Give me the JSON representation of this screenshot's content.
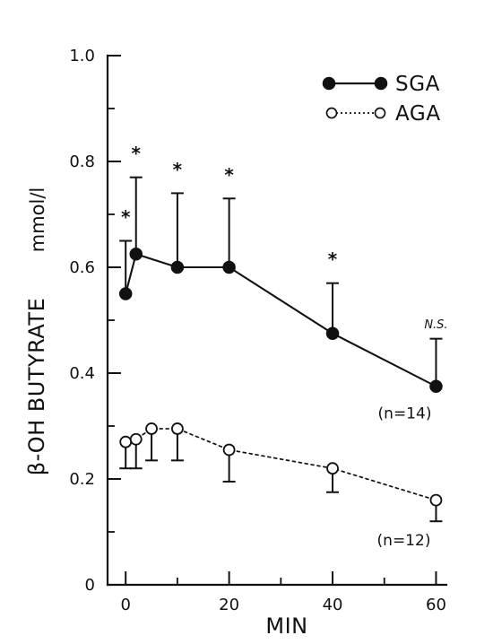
{
  "chart_data": {
    "type": "line",
    "xlabel": "MIN",
    "ylabel": "β-OH BUTYRATE",
    "ylabel_unit": "mmol/l",
    "xlim": [
      -3.5,
      62
    ],
    "ylim": [
      0,
      1.0
    ],
    "x_ticks": [
      0,
      20,
      40,
      60
    ],
    "x_minor_ticks": [
      10,
      30,
      50
    ],
    "y_ticks": [
      0,
      0.2,
      0.4,
      0.6,
      0.8,
      1.0
    ],
    "y_tick_labels": [
      "0",
      "0.2",
      "0.4",
      "0.6",
      "0.8",
      "1.0"
    ],
    "y_minor_ticks": [
      0.1,
      0.3,
      0.5,
      0.7,
      0.9
    ],
    "grid": false,
    "legend": {
      "position": "top-right",
      "entries": [
        "SGA",
        "AGA"
      ]
    },
    "series": [
      {
        "name": "SGA",
        "style": "solid",
        "marker": "filled-circle",
        "x": [
          0,
          2,
          10,
          20,
          40,
          60
        ],
        "values": [
          0.55,
          0.625,
          0.6,
          0.6,
          0.475,
          0.375
        ],
        "error_upper": [
          0.65,
          0.77,
          0.74,
          0.73,
          0.57,
          0.465
        ],
        "n_label": "(n=14)"
      },
      {
        "name": "AGA",
        "style": "dotted",
        "marker": "open-circle",
        "x": [
          0,
          2,
          5,
          10,
          20,
          40,
          60
        ],
        "values": [
          0.27,
          0.275,
          0.295,
          0.295,
          0.255,
          0.22,
          0.16
        ],
        "error_lower": [
          0.22,
          0.22,
          0.235,
          0.235,
          0.195,
          0.175,
          0.12
        ],
        "n_label": "(n=12)"
      }
    ],
    "annotations": {
      "significance_marks": [
        {
          "x": 0,
          "y": 0.695,
          "text": "*"
        },
        {
          "x": 2,
          "y": 0.815,
          "text": "*"
        },
        {
          "x": 10,
          "y": 0.785,
          "text": "*"
        },
        {
          "x": 20,
          "y": 0.775,
          "text": "*"
        },
        {
          "x": 40,
          "y": 0.615,
          "text": "*"
        }
      ],
      "ns": {
        "x": 60,
        "y": 0.485,
        "text": "N.S."
      }
    },
    "colors": {
      "ink": "#111111",
      "background": "#ffffff",
      "open_marker_fill": "#ffffff"
    }
  }
}
